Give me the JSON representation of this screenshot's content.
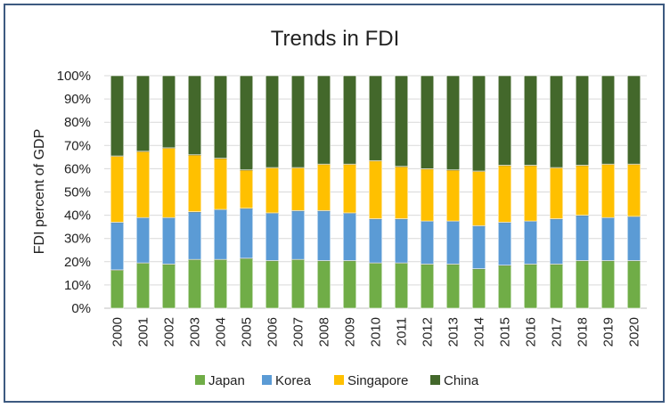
{
  "chart_data": {
    "type": "bar",
    "stacked": true,
    "percent_stacked": true,
    "title": "Trends in FDI",
    "xlabel": "",
    "ylabel": "FDI percent of GDP",
    "ylim": [
      0,
      100
    ],
    "yticks": [
      "0%",
      "10%",
      "20%",
      "30%",
      "40%",
      "50%",
      "60%",
      "70%",
      "80%",
      "90%",
      "100%"
    ],
    "legend_position": "bottom",
    "categories": [
      "2000",
      "2001",
      "2002",
      "2003",
      "2004",
      "2005",
      "2006",
      "2007",
      "2008",
      "2009",
      "2010",
      "2011",
      "2012",
      "2013",
      "2014",
      "2015",
      "2016",
      "2017",
      "2018",
      "2019",
      "2020"
    ],
    "series": [
      {
        "name": "Japan",
        "color": "#70ad47",
        "values": [
          16.5,
          19.5,
          19,
          21,
          21,
          21.5,
          20.5,
          21,
          20.5,
          20.5,
          19.5,
          19.5,
          19,
          19,
          17,
          18.5,
          19,
          19,
          20.5,
          20.5,
          20.5
        ]
      },
      {
        "name": "Korea",
        "color": "#5b9bd5",
        "values": [
          20.5,
          19.5,
          20,
          20.5,
          21.5,
          21.5,
          20.5,
          21,
          21.5,
          20.5,
          19,
          19,
          18.5,
          18.5,
          18.5,
          18.5,
          18.5,
          19.5,
          19.5,
          18.5,
          19
        ]
      },
      {
        "name": "Singapore",
        "color": "#ffc000",
        "values": [
          28.5,
          28.5,
          30,
          24.5,
          22,
          16.5,
          19.5,
          18.5,
          20,
          21,
          25,
          22.5,
          22.5,
          22,
          23.5,
          24.5,
          24,
          22,
          21.5,
          23,
          22.5
        ]
      },
      {
        "name": "China",
        "color": "#43682b",
        "values": [
          34.5,
          32.5,
          31,
          34,
          35.5,
          40.5,
          39.5,
          39.5,
          38,
          38,
          36.5,
          39,
          40,
          40.5,
          41,
          38.5,
          38.5,
          39.5,
          38.5,
          38,
          38
        ]
      }
    ]
  }
}
